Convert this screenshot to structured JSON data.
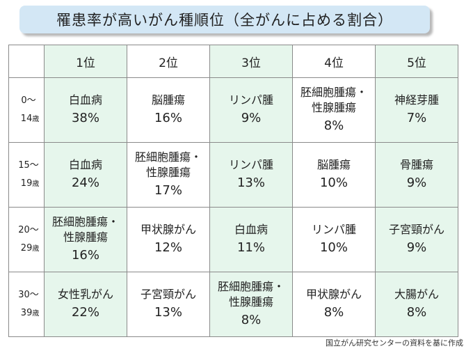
{
  "title": "罹患率が高いがん種順位（全がんに占める割合）",
  "columns": [
    "1位",
    "2位",
    "3位",
    "4位",
    "5位"
  ],
  "rows": [
    {
      "age_from": "0～",
      "age_to": "14",
      "age_unit": "歳",
      "cells": [
        {
          "name": "白血病",
          "pct": "38%"
        },
        {
          "name": "脳腫瘍",
          "pct": "16%"
        },
        {
          "name": "リンパ腫",
          "pct": "9%"
        },
        {
          "name": "胚細胞腫瘍・\n性腺腫瘍",
          "pct": "8%"
        },
        {
          "name": "神経芽腫",
          "pct": "7%"
        }
      ]
    },
    {
      "age_from": "15～",
      "age_to": "19",
      "age_unit": "歳",
      "cells": [
        {
          "name": "白血病",
          "pct": "24%"
        },
        {
          "name": "胚細胞腫瘍・\n性腺腫瘍",
          "pct": "17%"
        },
        {
          "name": "リンパ腫",
          "pct": "13%"
        },
        {
          "name": "脳腫瘍",
          "pct": "10%"
        },
        {
          "name": "骨腫瘍",
          "pct": "9%"
        }
      ]
    },
    {
      "age_from": "20～",
      "age_to": "29",
      "age_unit": "歳",
      "cells": [
        {
          "name": "胚細胞腫瘍・\n性腺腫瘍",
          "pct": "16%"
        },
        {
          "name": "甲状腺がん",
          "pct": "12%"
        },
        {
          "name": "白血病",
          "pct": "11%"
        },
        {
          "name": "リンパ腫",
          "pct": "10%"
        },
        {
          "name": "子宮頸がん",
          "pct": "9%"
        }
      ]
    },
    {
      "age_from": "30～",
      "age_to": "39",
      "age_unit": "歳",
      "cells": [
        {
          "name": "女性乳がん",
          "pct": "22%"
        },
        {
          "name": "子宮頸がん",
          "pct": "13%"
        },
        {
          "name": "胚細胞腫瘍・\n性腺腫瘍",
          "pct": "8%"
        },
        {
          "name": "甲状腺がん",
          "pct": "8%"
        },
        {
          "name": "大腸がん",
          "pct": "8%"
        }
      ]
    }
  ],
  "source": "国立がん研究センターの資料を基に作成"
}
